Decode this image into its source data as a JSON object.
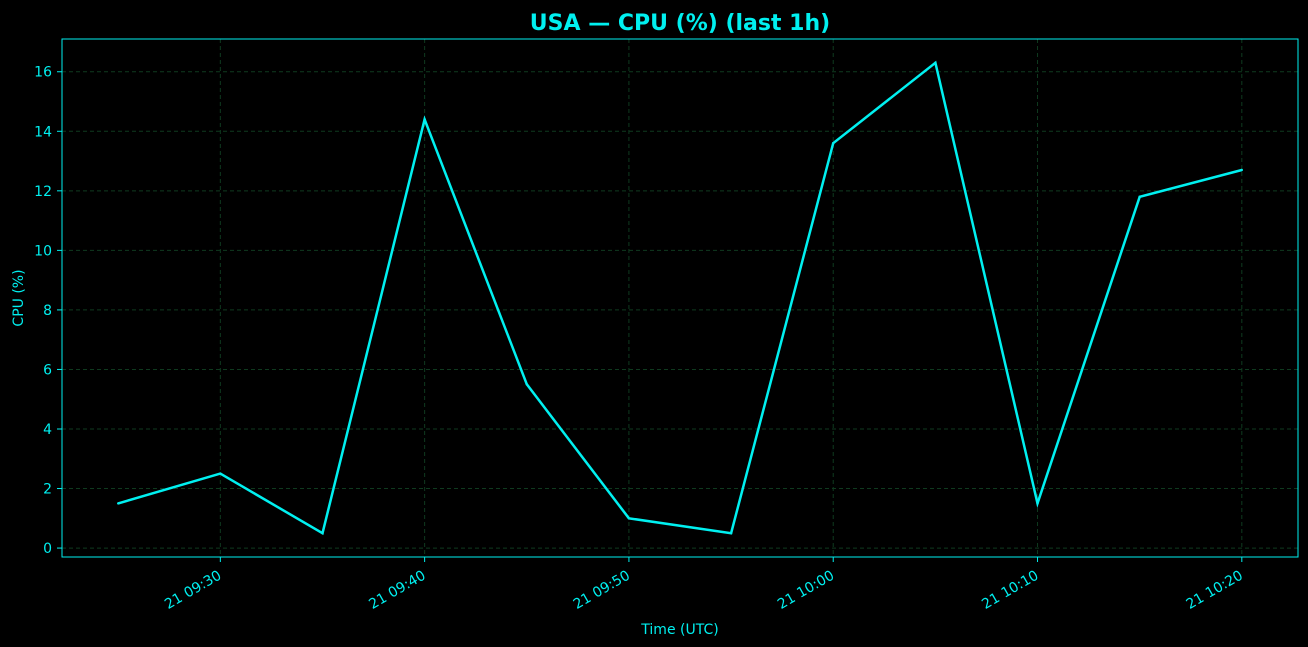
{
  "colors": {
    "background": "#000000",
    "accent": "#00f0f0",
    "grid": "#0f3a1f"
  },
  "chart_data": {
    "type": "line",
    "title": "USA — CPU (%) (last 1h)",
    "xlabel": "Time (UTC)",
    "ylabel": "CPU (%)",
    "x_tick_labels": [
      "21 09:30",
      "21 09:40",
      "21 09:50",
      "21 10:00",
      "21 10:10",
      "21 10:20"
    ],
    "y_tick_labels": [
      "0",
      "2",
      "4",
      "6",
      "8",
      "10",
      "12",
      "14",
      "16"
    ],
    "y_ticks": [
      0,
      2,
      4,
      6,
      8,
      10,
      12,
      14,
      16
    ],
    "ylim": [
      -0.3,
      17.1
    ],
    "xlim": [
      "09:22:15",
      "10:22:45"
    ],
    "grid": true,
    "series": [
      {
        "x": [
          "09:25",
          "09:30",
          "09:35",
          "09:40",
          "09:45",
          "09:50",
          "09:55",
          "10:00",
          "10:05",
          "10:10",
          "10:15",
          "10:20"
        ],
        "values": [
          1.5,
          2.5,
          0.5,
          14.4,
          5.5,
          1.0,
          0.5,
          13.6,
          16.3,
          1.5,
          11.8,
          12.7
        ]
      }
    ]
  }
}
